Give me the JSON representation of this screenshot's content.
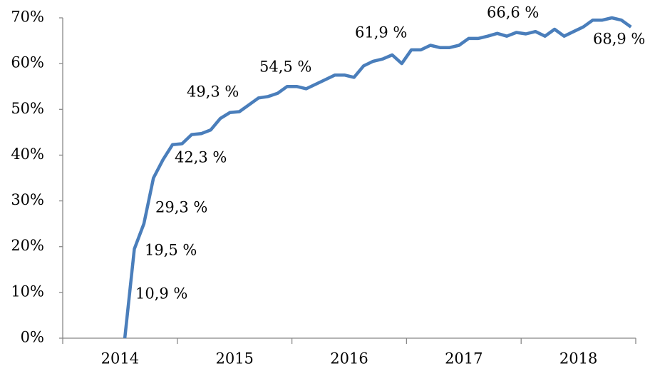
{
  "chart_data": {
    "type": "line",
    "categories": [
      null,
      null,
      null,
      null,
      null,
      null,
      "2014",
      null,
      null,
      null,
      null,
      null,
      null,
      null,
      null,
      null,
      null,
      "2015",
      null,
      null,
      null,
      null,
      null,
      null,
      null,
      null,
      null,
      null,
      null,
      "2016",
      null,
      null,
      null,
      null,
      null,
      null,
      null,
      null,
      null,
      null,
      null,
      "2017",
      null,
      null,
      null,
      null,
      null,
      null,
      null,
      null,
      null,
      null,
      null,
      "2018",
      null,
      null,
      null,
      null,
      null,
      null
    ],
    "series": [
      {
        "color": "#4a7ebb",
        "values": [
          null,
          null,
          null,
          null,
          null,
          null,
          0,
          19.5,
          25,
          35,
          39,
          42.3,
          42.5,
          44.5,
          44.7,
          45.5,
          48,
          49.3,
          49.5,
          51,
          52.5,
          52.8,
          53.5,
          55,
          55,
          54.5,
          55.5,
          56.5,
          57.5,
          57.5,
          57,
          59.5,
          60.5,
          61,
          61.9,
          60,
          63,
          63,
          64,
          63.5,
          63.5,
          64,
          65.5,
          65.5,
          66,
          66.6,
          66,
          66.8,
          66.5,
          67,
          66,
          67.5,
          66,
          67,
          68,
          69.5,
          69.5,
          70,
          69.5,
          68
        ]
      }
    ],
    "ylim": [
      0,
      70
    ],
    "yticks": [
      {
        "value": 0,
        "label": "0%"
      },
      {
        "value": 10,
        "label": "10%"
      },
      {
        "value": 20,
        "label": "20%"
      },
      {
        "value": 30,
        "label": "30%"
      },
      {
        "value": 40,
        "label": "40%"
      },
      {
        "value": 50,
        "label": "50%"
      },
      {
        "value": 60,
        "label": "60%"
      },
      {
        "value": 70,
        "label": "70%"
      }
    ],
    "annotations": [
      "10,9 %",
      "19,5 %",
      "29,3 %",
      "42,3 %",
      "49,3 %",
      "54,5 %",
      "61,9 %",
      "66,6 %",
      "68,9 %"
    ]
  }
}
